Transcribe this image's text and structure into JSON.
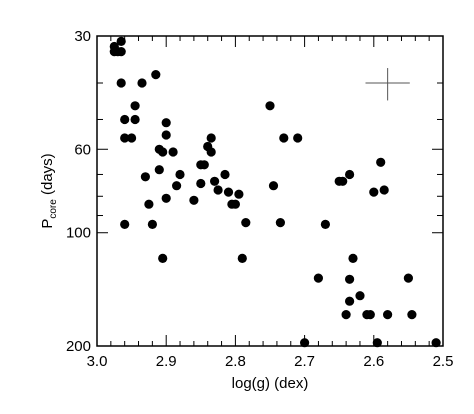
{
  "chart_data": {
    "type": "scatter",
    "title": "",
    "xlabel": "log(g) (dex)",
    "ylabel": {
      "base": "P",
      "subscript": "core",
      "suffix": " (days)"
    },
    "x_reversed": true,
    "y_log": true,
    "y_inverted": true,
    "xlim": [
      3.0,
      2.5
    ],
    "ylim": [
      30,
      200
    ],
    "x_ticks": [
      "3.0",
      "2.9",
      "2.8",
      "2.7",
      "2.6",
      "2.5"
    ],
    "y_ticks": [
      "30",
      "60",
      "100",
      "200"
    ],
    "grid": false,
    "legend": "none",
    "marker_color": "#000000",
    "error_bar": {
      "x": 2.58,
      "y": 40,
      "x_err": 0.032,
      "y_low": 36.5,
      "y_high": 44.5
    },
    "series": [
      {
        "points": [
          [
            2.975,
            32
          ],
          [
            2.975,
            33
          ],
          [
            2.97,
            33
          ],
          [
            2.965,
            31
          ],
          [
            2.965,
            33
          ],
          [
            2.965,
            40
          ],
          [
            2.96,
            50
          ],
          [
            2.96,
            56
          ],
          [
            2.96,
            95
          ],
          [
            2.95,
            56
          ],
          [
            2.945,
            46
          ],
          [
            2.945,
            50
          ],
          [
            2.935,
            40
          ],
          [
            2.93,
            71
          ],
          [
            2.925,
            84
          ],
          [
            2.92,
            95
          ],
          [
            2.915,
            38
          ],
          [
            2.91,
            68
          ],
          [
            2.91,
            60
          ],
          [
            2.905,
            61
          ],
          [
            2.905,
            117
          ],
          [
            2.9,
            55
          ],
          [
            2.9,
            81
          ],
          [
            2.9,
            51
          ],
          [
            2.89,
            61
          ],
          [
            2.885,
            75
          ],
          [
            2.88,
            70
          ],
          [
            2.86,
            82
          ],
          [
            2.85,
            74
          ],
          [
            2.85,
            66
          ],
          [
            2.845,
            66
          ],
          [
            2.84,
            59
          ],
          [
            2.835,
            56
          ],
          [
            2.835,
            61
          ],
          [
            2.83,
            73
          ],
          [
            2.825,
            77
          ],
          [
            2.815,
            70
          ],
          [
            2.81,
            78
          ],
          [
            2.805,
            84
          ],
          [
            2.8,
            84
          ],
          [
            2.795,
            79
          ],
          [
            2.79,
            117
          ],
          [
            2.785,
            94
          ],
          [
            2.75,
            46
          ],
          [
            2.745,
            75
          ],
          [
            2.735,
            94
          ],
          [
            2.73,
            56
          ],
          [
            2.71,
            56
          ],
          [
            2.7,
            196
          ],
          [
            2.68,
            132
          ],
          [
            2.67,
            95
          ],
          [
            2.65,
            73
          ],
          [
            2.645,
            73
          ],
          [
            2.64,
            165
          ],
          [
            2.635,
            70
          ],
          [
            2.635,
            133
          ],
          [
            2.635,
            152
          ],
          [
            2.63,
            117
          ],
          [
            2.62,
            147
          ],
          [
            2.61,
            165
          ],
          [
            2.605,
            165
          ],
          [
            2.6,
            78
          ],
          [
            2.595,
            196
          ],
          [
            2.59,
            65
          ],
          [
            2.585,
            77
          ],
          [
            2.58,
            165
          ],
          [
            2.55,
            132
          ],
          [
            2.545,
            165
          ],
          [
            2.51,
            196
          ]
        ]
      }
    ]
  }
}
